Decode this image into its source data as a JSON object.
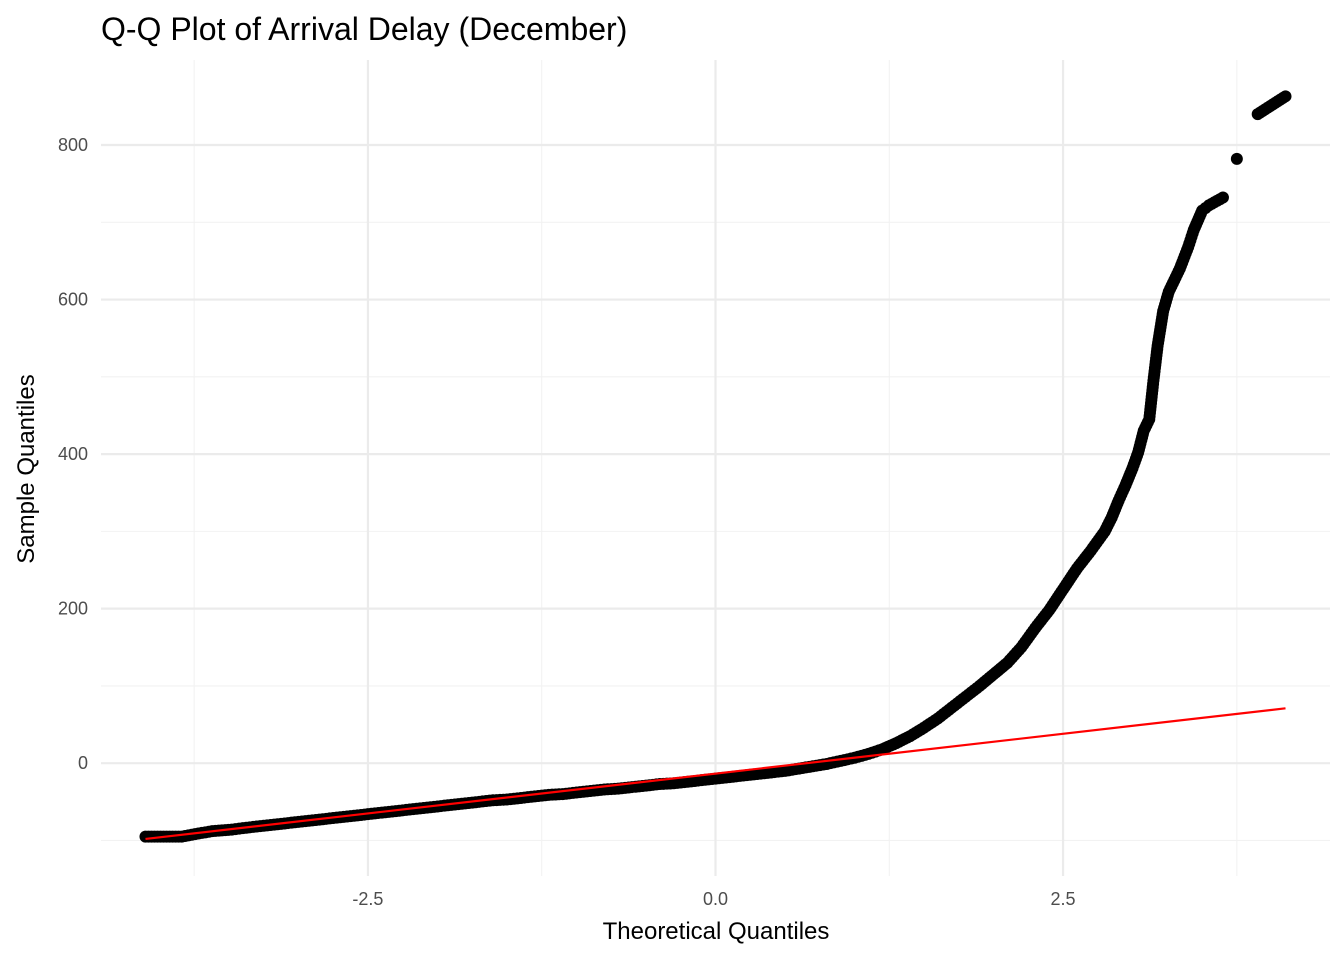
{
  "chart_data": {
    "type": "scatter",
    "title": "Q-Q Plot of Arrival Delay (December)",
    "xlabel": "Theoretical Quantiles",
    "ylabel": "Sample Quantiles",
    "xlim": [
      -4.42,
      4.42
    ],
    "ylim": [
      -146,
      910
    ],
    "x_ticks": [
      -2.5,
      0.0,
      2.5
    ],
    "x_tick_labels": [
      "-2.5",
      "0.0",
      "2.5"
    ],
    "x_minor_ticks": [
      -3.75,
      -1.25,
      1.25,
      3.75
    ],
    "y_ticks": [
      0,
      200,
      400,
      600,
      800
    ],
    "y_tick_labels": [
      "0",
      "200",
      "400",
      "600",
      "800"
    ],
    "y_minor_ticks": [
      -100,
      100,
      300,
      500,
      700
    ],
    "grid": true,
    "point_color": "#000000",
    "reference_line": {
      "color": "#ff0000",
      "x": [
        -4.1,
        4.1
      ],
      "y": [
        -98,
        71
      ]
    },
    "series": [
      {
        "points": [
          [
            -4.1,
            -95
          ],
          [
            -3.84,
            -95
          ],
          [
            -3.72,
            -91
          ],
          [
            -3.62,
            -88
          ],
          [
            -3.55,
            -87
          ],
          [
            -3.48,
            -86
          ],
          [
            -3.4,
            -84
          ],
          [
            -3.3,
            -82
          ],
          [
            -3.2,
            -80
          ],
          [
            -3.1,
            -78
          ],
          [
            -3.0,
            -76
          ],
          [
            -2.9,
            -74
          ],
          [
            -2.8,
            -72
          ],
          [
            -2.7,
            -70
          ],
          [
            -2.6,
            -68
          ],
          [
            -2.5,
            -66
          ],
          [
            -2.4,
            -64
          ],
          [
            -2.3,
            -62
          ],
          [
            -2.2,
            -60
          ],
          [
            -2.1,
            -58
          ],
          [
            -2.0,
            -56
          ],
          [
            -1.9,
            -54
          ],
          [
            -1.8,
            -52
          ],
          [
            -1.7,
            -50
          ],
          [
            -1.6,
            -48
          ],
          [
            -1.5,
            -47
          ],
          [
            -1.4,
            -45
          ],
          [
            -1.3,
            -43
          ],
          [
            -1.2,
            -41
          ],
          [
            -1.1,
            -40
          ],
          [
            -1.0,
            -38
          ],
          [
            -0.9,
            -36
          ],
          [
            -0.8,
            -34
          ],
          [
            -0.7,
            -33
          ],
          [
            -0.6,
            -31
          ],
          [
            -0.5,
            -29
          ],
          [
            -0.4,
            -27
          ],
          [
            -0.3,
            -26
          ],
          [
            -0.2,
            -24
          ],
          [
            -0.1,
            -22
          ],
          [
            0.0,
            -20
          ],
          [
            0.1,
            -18
          ],
          [
            0.2,
            -16
          ],
          [
            0.3,
            -14
          ],
          [
            0.4,
            -12
          ],
          [
            0.5,
            -10
          ],
          [
            0.6,
            -7
          ],
          [
            0.7,
            -4
          ],
          [
            0.8,
            -1
          ],
          [
            0.9,
            3
          ],
          [
            1.0,
            7
          ],
          [
            1.1,
            12
          ],
          [
            1.2,
            18
          ],
          [
            1.3,
            26
          ],
          [
            1.4,
            35
          ],
          [
            1.5,
            46
          ],
          [
            1.6,
            58
          ],
          [
            1.7,
            72
          ],
          [
            1.8,
            86
          ],
          [
            1.9,
            100
          ],
          [
            2.0,
            115
          ],
          [
            2.1,
            130
          ],
          [
            2.2,
            150
          ],
          [
            2.3,
            175
          ],
          [
            2.4,
            198
          ],
          [
            2.5,
            225
          ],
          [
            2.6,
            252
          ],
          [
            2.7,
            275
          ],
          [
            2.8,
            300
          ],
          [
            2.85,
            318
          ],
          [
            2.9,
            340
          ],
          [
            2.95,
            360
          ],
          [
            3.0,
            382
          ],
          [
            3.04,
            402
          ],
          [
            3.08,
            430
          ],
          [
            3.12,
            445
          ],
          [
            3.15,
            495
          ],
          [
            3.18,
            540
          ],
          [
            3.22,
            585
          ],
          [
            3.26,
            610
          ],
          [
            3.3,
            625
          ],
          [
            3.34,
            640
          ],
          [
            3.4,
            668
          ],
          [
            3.44,
            690
          ],
          [
            3.5,
            715
          ],
          [
            3.55,
            722
          ],
          [
            3.65,
            732
          ],
          [
            3.75,
            782
          ],
          [
            3.9,
            840
          ],
          [
            4.1,
            863
          ]
        ]
      }
    ]
  }
}
